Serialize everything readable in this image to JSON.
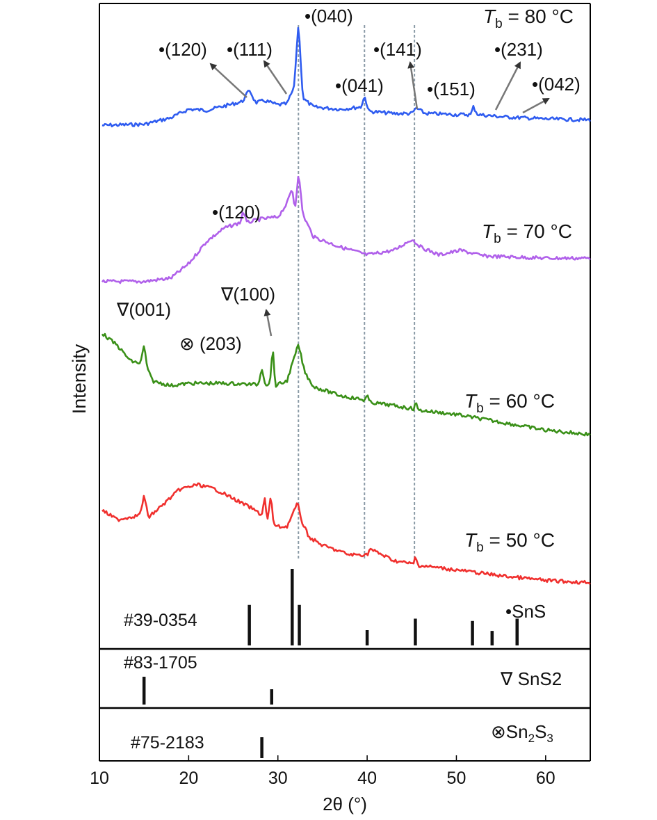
{
  "chart_data": {
    "type": "line",
    "xlabel": "2θ (°)",
    "ylabel": "Intensity",
    "xlim": [
      10,
      65
    ],
    "xticks": [
      10,
      20,
      30,
      40,
      50,
      60
    ],
    "series": [
      {
        "name": "Tb = 80 °C",
        "label_main": "T",
        "label_sub": "b",
        "label_rest": " = 80 °C",
        "color": "#2f5cf0",
        "x": [
          10.3,
          15,
          18,
          20,
          22,
          24,
          26,
          26.8,
          27.5,
          28.5,
          30,
          31,
          31.8,
          32.3,
          32.8,
          34,
          37,
          39.3,
          39.7,
          40.2,
          43,
          45,
          45.5,
          46.5,
          50,
          51.6,
          51.9,
          52.4,
          55,
          60,
          65
        ],
        "y": [
          0.05,
          0.06,
          0.12,
          0.2,
          0.19,
          0.23,
          0.27,
          0.38,
          0.26,
          0.28,
          0.24,
          0.25,
          0.4,
          1.0,
          0.3,
          0.22,
          0.2,
          0.22,
          0.32,
          0.18,
          0.16,
          0.16,
          0.21,
          0.16,
          0.15,
          0.15,
          0.22,
          0.15,
          0.13,
          0.11,
          0.1
        ]
      },
      {
        "name": "Tb = 70 °C",
        "label_main": "T",
        "label_sub": "b",
        "label_rest": " = 70 °C",
        "color": "#b060ea",
        "x": [
          10.3,
          15,
          18,
          20,
          22,
          24,
          25.8,
          26.1,
          26.5,
          28,
          30,
          31,
          31.6,
          31.9,
          32.3,
          32.8,
          34,
          37,
          40,
          43,
          45,
          46,
          48,
          50.5,
          53,
          60,
          65
        ],
        "y": [
          0.02,
          0.02,
          0.05,
          0.18,
          0.38,
          0.5,
          0.55,
          0.66,
          0.55,
          0.58,
          0.6,
          0.72,
          0.86,
          0.66,
          1.0,
          0.62,
          0.42,
          0.33,
          0.26,
          0.3,
          0.4,
          0.33,
          0.26,
          0.3,
          0.25,
          0.23,
          0.23
        ]
      },
      {
        "name": "Tb = 60 °C",
        "label_main": "T",
        "label_sub": "b",
        "label_rest": " = 60 °C",
        "color": "#3a9018",
        "x": [
          10.3,
          12,
          13.5,
          14.6,
          15,
          15.4,
          16,
          18,
          20,
          24,
          27.8,
          28.2,
          28.6,
          29.1,
          29.4,
          29.7,
          31,
          32.3,
          33,
          34,
          37,
          39.7,
          40,
          40.3,
          43,
          45.2,
          45.4,
          45.7,
          50,
          55,
          60,
          65
        ],
        "y": [
          0.93,
          0.82,
          0.68,
          0.66,
          0.82,
          0.6,
          0.5,
          0.46,
          0.48,
          0.48,
          0.47,
          0.62,
          0.47,
          0.47,
          0.82,
          0.46,
          0.5,
          0.83,
          0.58,
          0.45,
          0.37,
          0.33,
          0.37,
          0.31,
          0.28,
          0.25,
          0.32,
          0.24,
          0.2,
          0.13,
          0.06,
          0.02
        ]
      },
      {
        "name": "Tb = 50 °C",
        "label_main": "T",
        "label_sub": "b",
        "label_rest": " = 50 °C",
        "color": "#f0302e",
        "x": [
          10.3,
          12,
          14.5,
          15,
          15.5,
          17,
          19,
          21,
          23,
          25,
          27,
          28.2,
          28.5,
          28.8,
          29.2,
          29.5,
          29.8,
          31,
          32.2,
          32.7,
          33.5,
          35,
          38,
          40,
          40.3,
          43,
          45.2,
          45.4,
          45.7,
          50,
          55,
          60,
          65
        ],
        "y": [
          0.68,
          0.6,
          0.64,
          0.8,
          0.62,
          0.72,
          0.86,
          0.9,
          0.86,
          0.78,
          0.7,
          0.64,
          0.8,
          0.58,
          0.8,
          0.58,
          0.54,
          0.54,
          0.74,
          0.58,
          0.45,
          0.38,
          0.3,
          0.3,
          0.35,
          0.25,
          0.22,
          0.29,
          0.21,
          0.17,
          0.12,
          0.08,
          0.06
        ]
      }
    ],
    "reference_patterns": [
      {
        "card": "#39-0354",
        "phase_marker": "•",
        "phase": "SnS",
        "phase_html": "SnS",
        "x": [
          26.8,
          31.6,
          32.4,
          40.0,
          45.4,
          51.8,
          54.0,
          56.8
        ],
        "rel_intensity": [
          0.53,
          1.0,
          0.53,
          0.2,
          0.35,
          0.32,
          0.19,
          0.35
        ]
      },
      {
        "card": "#83-1705",
        "phase_marker": "∇",
        "phase": "SnS2",
        "x": [
          15.0,
          29.3
        ],
        "rel_intensity": [
          1.0,
          0.55
        ]
      },
      {
        "card": "#75-2183",
        "phase_marker": "⊗",
        "phase": "Sn2S3",
        "x": [
          28.2
        ],
        "rel_intensity": [
          1.0
        ]
      }
    ],
    "dashed_guides_x": [
      32.3,
      39.7,
      45.3
    ],
    "annotations": [
      {
        "text": "•(120)",
        "series": 0
      },
      {
        "text": "•(111)",
        "series": 0
      },
      {
        "text": "•(040)",
        "series": 0
      },
      {
        "text": "•(041)",
        "series": 0
      },
      {
        "text": "•(141)",
        "series": 0
      },
      {
        "text": "•(151)",
        "series": 0
      },
      {
        "text": "•(231)",
        "series": 0
      },
      {
        "text": "•(042)",
        "series": 0
      },
      {
        "text": "•(120)",
        "series": 1
      },
      {
        "text": "∇(001)",
        "series": 2
      },
      {
        "text": "∇(100)",
        "series": 2
      },
      {
        "text": "⊗ (203)",
        "series": 2
      }
    ],
    "grid": false
  }
}
